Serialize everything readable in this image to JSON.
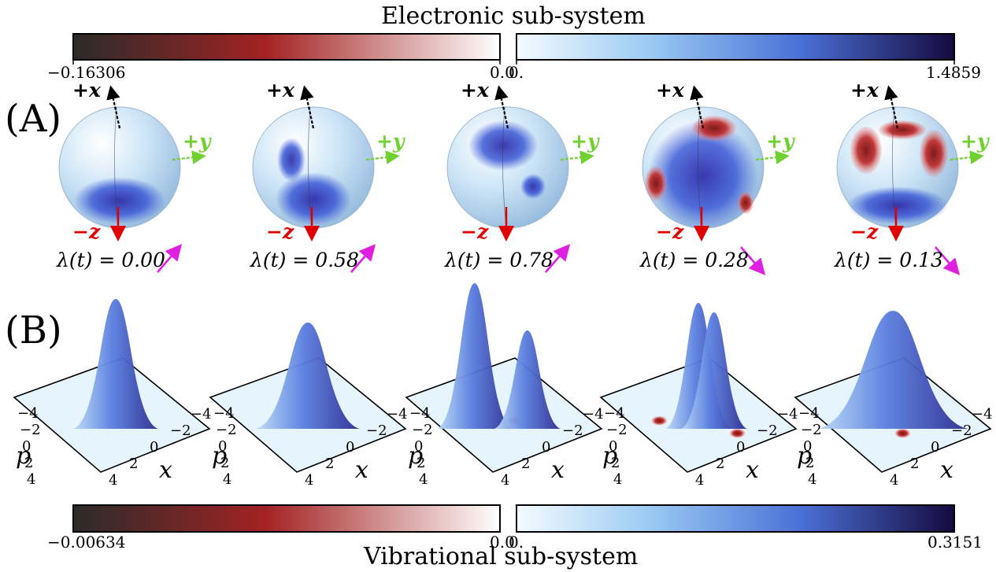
{
  "electronic": {
    "title": "Electronic sub-system",
    "neg_min": "−0.16306",
    "neg_max": "0.0",
    "pos_min": "0.",
    "pos_max": "1.4859"
  },
  "vibrational": {
    "title": "Vibrational sub-system",
    "neg_min": "−0.00634",
    "neg_max": "0.0",
    "pos_min": "0.",
    "pos_max": "0.3151"
  },
  "panels": {
    "a": "(A)",
    "b": "(B)"
  },
  "axes": {
    "plus_x": "+x",
    "plus_y": "+y",
    "minus_z": "−z",
    "p": "p",
    "x": "x"
  },
  "wigner_ticks": [
    "−4",
    "−2",
    "0",
    "2",
    "4"
  ],
  "spheres": [
    {
      "lambda": "λ(t) = 0.00",
      "trend": "up"
    },
    {
      "lambda": "λ(t) = 0.58",
      "trend": "up"
    },
    {
      "lambda": "λ(t) = 0.78",
      "trend": "up"
    },
    {
      "lambda": "λ(t) = 0.28",
      "trend": "down"
    },
    {
      "lambda": "λ(t) = 0.13",
      "trend": "down"
    }
  ],
  "colors": {
    "neg_dark": "#2b2b2b",
    "neg_mid": "#a32222",
    "neg_light": "#ffffff",
    "pos_light": "#eaf6ff",
    "pos_mid": "#4a78d8",
    "pos_dark": "#160a3e",
    "arrow_x": "#000000",
    "arrow_y": "#6fd12f",
    "arrow_z": "#e00000",
    "trend_arrow": "#e020e0"
  }
}
